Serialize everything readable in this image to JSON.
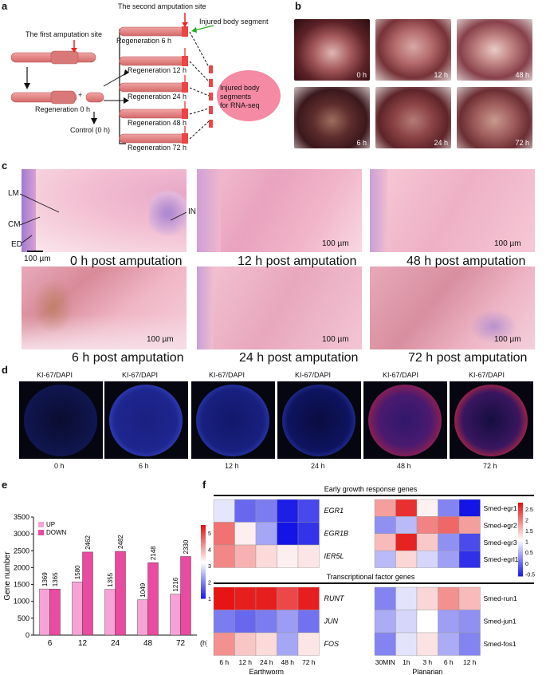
{
  "panel_labels": {
    "a": "a",
    "b": "b",
    "c": "c",
    "d": "d",
    "e": "e",
    "f": "f"
  },
  "panel_a": {
    "second_site": "The second amputation site",
    "injured_segment": "Injured body segment",
    "first_site": "The first amputation site",
    "regen0": "Regeneration 0 h",
    "control": "Control (0 h)",
    "regen": [
      "Regeneration 6 h",
      "Regeneration 12 h",
      "Regeneration 24 h",
      "Regeneration 48 h",
      "Regeneration 72 h"
    ],
    "rnaseq": [
      "Injured body",
      "segments",
      "for RNA-seq"
    ],
    "plus": "+"
  },
  "panel_b": {
    "times": [
      "0 h",
      "12 h",
      "48 h",
      "6 h",
      "24 h",
      "72 h"
    ]
  },
  "panel_c": {
    "captions": [
      "0 h post amputation",
      "12 h post amputation",
      "48 h post amputation",
      "6 h post amputation",
      "24 h post amputation",
      "72 h post amputation"
    ],
    "scale": "100 µm",
    "labels": {
      "lm": "LM",
      "cm": "CM",
      "ed": "ED",
      "in": "IN"
    }
  },
  "panel_d": {
    "stain": "KI-67/DAPI",
    "times": [
      "0 h",
      "6 h",
      "12 h",
      "24 h",
      "48 h",
      "72 h"
    ]
  },
  "panel_e": {
    "ylabel": "Gene number",
    "xunit": "(h)",
    "legend": [
      "UP",
      "DOWN"
    ],
    "colors": {
      "up": "#f6a3d6",
      "down": "#ea4aa0"
    }
  },
  "panel_f": {
    "section1": "Early growth response genes",
    "section2": "Transcriptional factor genes",
    "earthworm_genes_top": [
      "EGR1",
      "EGR1B",
      "IER5L"
    ],
    "planarian_genes_top": [
      "Smed-egr1",
      "Smed-egr2",
      "Smed-egr3",
      "Smed-egrl1"
    ],
    "earthworm_genes_bottom": [
      "RUNT",
      "JUN",
      "FOS"
    ],
    "planarian_genes_bottom": [
      "Smed-run1",
      "Smed-jun1",
      "Smed-fos1"
    ],
    "earthworm_x": [
      "6 h",
      "12 h",
      "24 h",
      "48 h",
      "72 h"
    ],
    "planarian_x": [
      "30MIN",
      "1h",
      "3 h",
      "6 h",
      "12 h"
    ],
    "earthworm_label": "Earthworm",
    "planarian_label": "Planarian",
    "scale_left": [
      "5",
      "4",
      "3",
      "2",
      "1"
    ],
    "scale_right": [
      "2.5",
      "2",
      "1.5",
      "1",
      "0.5",
      "0",
      "-0.5"
    ]
  },
  "chart_data": [
    {
      "type": "bar",
      "categories": [
        "6",
        "12",
        "24",
        "48",
        "72"
      ],
      "xlabel": "(h)",
      "ylabel": "Gene number",
      "ylim": [
        0,
        3500
      ],
      "yticks": [
        0,
        500,
        1000,
        1500,
        2000,
        2500,
        3000,
        3500
      ],
      "series": [
        {
          "name": "UP",
          "values": [
            1369,
            1580,
            1355,
            1049,
            1216
          ]
        },
        {
          "name": "DOWN",
          "values": [
            1365,
            2462,
            2482,
            2148,
            2330
          ]
        }
      ]
    },
    {
      "type": "heatmap",
      "x": [
        "6 h",
        "12 h",
        "24 h",
        "48 h",
        "72 h"
      ],
      "y": [
        "EGR1",
        "EGR1B",
        "IER5L",
        "RUNT",
        "JUN",
        "FOS"
      ],
      "values": [
        [
          3.0,
          1.8,
          2.0,
          1.1,
          1.5
        ],
        [
          4.6,
          3.4,
          2.4,
          1.0,
          1.3
        ],
        [
          4.4,
          4.0,
          3.6,
          3.4,
          3.5
        ],
        [
          5.5,
          5.4,
          5.4,
          5.0,
          5.4
        ],
        [
          2.0,
          1.8,
          2.0,
          2.3,
          1.9
        ],
        [
          4.3,
          3.8,
          3.6,
          2.4,
          3.5
        ]
      ]
    },
    {
      "type": "heatmap",
      "x": [
        "30MIN",
        "1h",
        "3 h",
        "6 h",
        "12 h"
      ],
      "y": [
        "Smed-egr1",
        "Smed-egr2",
        "Smed-egr3",
        "Smed-egrl1",
        "Smed-run1",
        "Smed-jun1",
        "Smed-fos1"
      ],
      "values": [
        [
          1.8,
          2.6,
          1.2,
          0.2,
          -0.6
        ],
        [
          0.3,
          0.6,
          2.0,
          2.2,
          1.8
        ],
        [
          1.6,
          2.7,
          1.5,
          0.3,
          -0.2
        ],
        [
          0.6,
          1.4,
          0.8,
          0.4,
          -0.4
        ],
        [
          0.2,
          0.9,
          1.4,
          1.9,
          1.6
        ],
        [
          0.5,
          0.8,
          1.1,
          0.4,
          0.3
        ],
        [
          0.2,
          0.9,
          1.3,
          0.5,
          0.2
        ]
      ]
    }
  ]
}
